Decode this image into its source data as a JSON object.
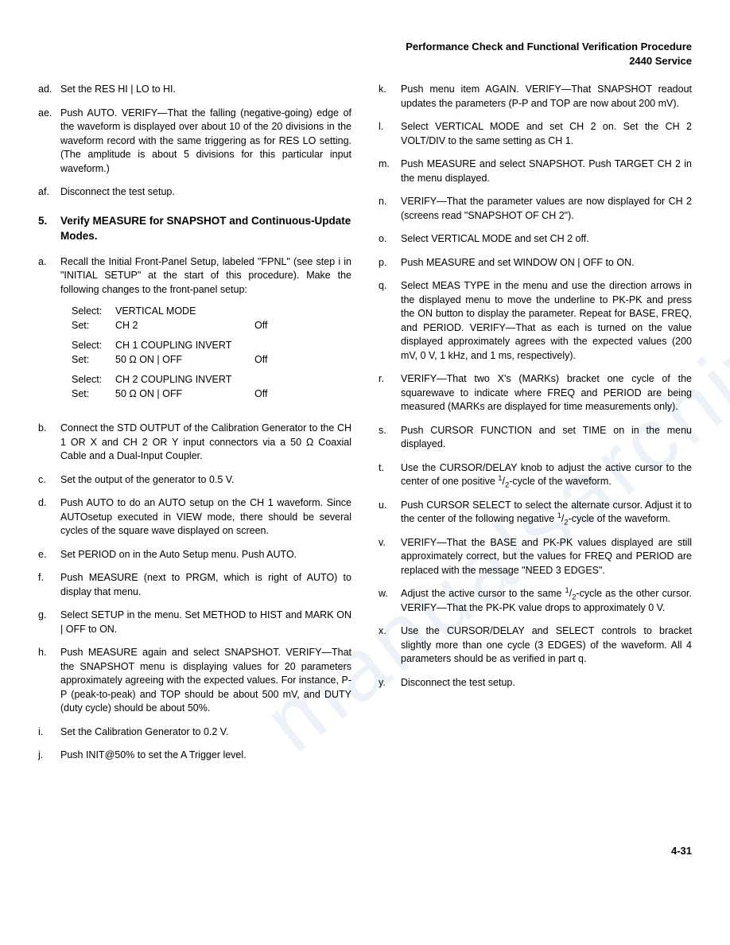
{
  "header_line1": "Performance Check and Functional Verification Procedure",
  "header_line2": "2440 Service",
  "footer": "4-31",
  "watermark": "manualsarchive.com",
  "section5_num": "5.",
  "section5_title": "Verify MEASURE for SNAPSHOT and Continuous-Update Modes.",
  "setup": {
    "r1c1": "Select:",
    "r1c2": "VERTICAL MODE",
    "r1c3": "",
    "r2c1": "Set:",
    "r2c2": "CH 2",
    "r2c3": "Off",
    "r3c1": "Select:",
    "r3c2": "CH 1 COUPLING INVERT",
    "r3c3": "",
    "r4c1": "Set:",
    "r4c2": "50 Ω ON | OFF",
    "r4c3": "Off",
    "r5c1": "Select:",
    "r5c2": "CH 2 COUPLING INVERT",
    "r5c3": "",
    "r6c1": "Set:",
    "r6c2": "50 Ω ON | OFF",
    "r6c3": "Off"
  },
  "left": {
    "ad": "Set the RES HI | LO to HI.",
    "ae": "Push AUTO. VERIFY—That the falling (negative-going) edge of the waveform is displayed over about 10 of the 20 divisions in the waveform record with the same triggering as for RES LO setting. (The amplitude is about 5 divisions for this particular input waveform.)",
    "af": "Disconnect the test setup.",
    "a": "Recall the Initial Front-Panel Setup, labeled \"FPNL\" (see step i in \"INITIAL SETUP\" at the start of this procedure). Make the following changes to the front-panel setup:",
    "b": "Connect the STD OUTPUT of the Calibration Generator to the CH 1 OR X and CH 2 OR Y input connectors via a 50 Ω Coaxial Cable and a Dual-Input Coupler.",
    "c": "Set the output of the generator to 0.5 V.",
    "d": "Push AUTO to do an AUTO setup on the CH 1 waveform. Since AUTOsetup executed in VIEW mode, there should be several cycles of the square wave displayed on screen.",
    "e": "Set PERIOD on in the Auto Setup menu. Push AUTO.",
    "f": "Push MEASURE (next to PRGM, which is right of AUTO) to display that menu.",
    "g": "Select SETUP in the menu. Set METHOD to HIST and MARK ON | OFF to ON.",
    "h": "Push MEASURE again and select SNAPSHOT. VERIFY—That the SNAPSHOT menu is displaying values for 20 parameters approximately agreeing with the expected values. For instance, P-P (peak-to-peak) and TOP should be about 500 mV, and DUTY (duty cycle) should be about 50%.",
    "i": "Set the Calibration Generator to 0.2 V.",
    "j": "Push INIT@50% to set the A Trigger level."
  },
  "right": {
    "k": "Push menu item AGAIN. VERIFY—That SNAPSHOT readout updates the parameters (P-P and TOP are now about 200 mV).",
    "l": "Select VERTICAL MODE and set CH 2 on. Set the CH 2 VOLT/DIV to the same setting as CH 1.",
    "m": "Push MEASURE and select SNAPSHOT. Push TARGET CH 2 in the menu displayed.",
    "n": "VERIFY—That the parameter values are now displayed for CH 2 (screens read \"SNAPSHOT OF CH 2\").",
    "o": "Select VERTICAL MODE and set CH 2 off.",
    "p": "Push MEASURE and set WINDOW ON | OFF to ON.",
    "q": "Select MEAS TYPE in the menu and use the direction arrows in the displayed menu to move the underline to PK-PK and press the ON button to display the parameter. Repeat for BASE, FREQ, and PERIOD. VERIFY—That as each is turned on the value displayed approximately agrees with the expected values (200 mV, 0 V, 1 kHz, and 1 ms, respectively).",
    "r": "VERIFY—That two X's (MARKs) bracket one cycle of the squarewave to indicate where FREQ and PERIOD are being measured (MARKs are displayed for time measurements only).",
    "s": "Push CURSOR FUNCTION and set TIME on in the menu displayed.",
    "t_pre": "Use the CURSOR/DELAY knob to adjust the active cursor to the center of one positive ",
    "t_post": "-cycle of the waveform.",
    "u_pre": "Push CURSOR SELECT to select the alternate cursor. Adjust it to the center of the following negative ",
    "u_post": "-cycle of the waveform.",
    "v": "VERIFY—That the BASE and PK-PK values displayed are still approximately correct, but the values for FREQ and PERIOD are replaced with the message \"NEED 3 EDGES\".",
    "w_pre": "Adjust the active cursor to the same ",
    "w_post": "-cycle as the other cursor. VERIFY—That the PK-PK value drops to approximately 0 V.",
    "x": "Use the CURSOR/DELAY and SELECT controls to bracket slightly more than one cycle (3 EDGES) of the waveform. All 4 parameters should be as verified in part q.",
    "y": "Disconnect the test setup."
  },
  "labels": {
    "ad": "ad.",
    "ae": "ae.",
    "af": "af.",
    "a": "a.",
    "b": "b.",
    "c": "c.",
    "d": "d.",
    "e": "e.",
    "f": "f.",
    "g": "g.",
    "h": "h.",
    "i": "i.",
    "j": "j.",
    "k": "k.",
    "l": "l.",
    "m": "m.",
    "n": "n.",
    "o": "o.",
    "p": "p.",
    "q": "q.",
    "r": "r.",
    "s": "s.",
    "t": "t.",
    "u": "u.",
    "v": "v.",
    "w": "w.",
    "x": "x.",
    "y": "y."
  },
  "half": "¹/₂"
}
